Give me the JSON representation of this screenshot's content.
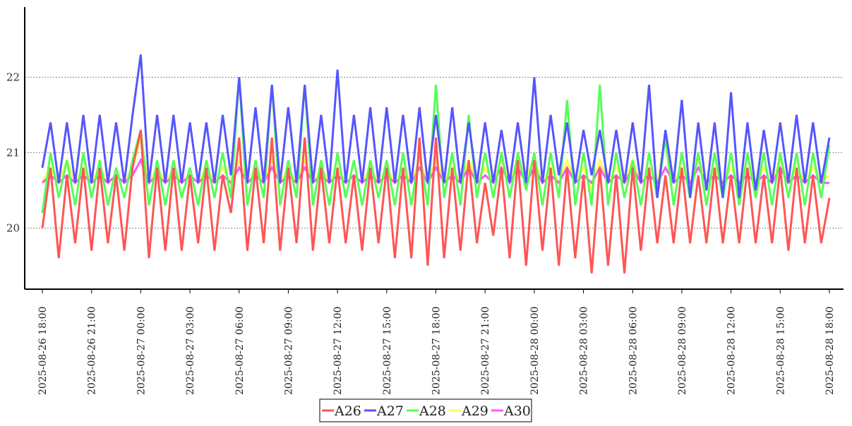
{
  "chart_data": {
    "type": "line",
    "title": "",
    "xlabel": "",
    "ylabel": "",
    "x_start": "2025-08-26 18:00",
    "x_end": "2025-08-28 18:00",
    "ylim": [
      19.19,
      22.93
    ],
    "yticks": [
      20,
      21,
      22
    ],
    "grid": "horizontal dotted",
    "legend_position": "bottom-center",
    "xtick_labels": [
      "2025-08-26 18:00",
      "2025-08-26 21:00",
      "2025-08-27 00:00",
      "2025-08-27 03:00",
      "2025-08-27 06:00",
      "2025-08-27 09:00",
      "2025-08-27 12:00",
      "2025-08-27 15:00",
      "2025-08-27 18:00",
      "2025-08-27 21:00",
      "2025-08-28 00:00",
      "2025-08-28 03:00",
      "2025-08-28 06:00",
      "2025-08-28 09:00",
      "2025-08-28 12:00",
      "2025-08-28 15:00",
      "2025-08-28 18:00"
    ],
    "series": [
      {
        "name": "A29",
        "color": "#ffff55",
        "values": [
          20.6,
          20.8,
          20.6,
          20.9,
          20.6,
          20.8,
          20.6,
          20.8,
          20.6,
          20.7,
          20.6,
          20.8,
          21.2,
          20.6,
          20.8,
          20.6,
          20.8,
          20.6,
          20.7,
          20.6,
          20.8,
          20.6,
          20.8,
          20.6,
          20.9,
          20.6,
          20.8,
          20.6,
          20.9,
          20.6,
          20.8,
          20.6,
          20.9,
          20.6,
          20.8,
          20.6,
          20.8,
          20.6,
          20.7,
          20.6,
          20.8,
          20.6,
          20.8,
          20.6,
          20.8,
          20.6,
          20.9,
          20.6,
          20.9,
          20.6,
          20.8,
          20.6,
          20.9,
          20.6,
          20.8,
          20.6,
          20.9,
          20.6,
          20.9,
          20.7,
          20.9,
          20.6,
          20.8,
          20.6,
          20.9,
          20.6,
          20.8,
          20.5,
          20.9,
          20.6,
          20.8,
          20.6,
          20.9,
          20.6,
          20.8,
          20.6,
          21.2,
          20.6,
          20.8,
          20.6,
          20.9,
          20.6,
          20.8,
          20.6,
          20.8,
          20.6,
          20.8,
          20.6,
          20.8,
          20.6,
          20.9,
          20.6,
          20.8,
          20.6,
          20.8,
          20.6,
          20.7
        ]
      },
      {
        "name": "A30",
        "color": "#ff55ff",
        "values": [
          20.6,
          20.7,
          20.6,
          20.7,
          20.6,
          20.7,
          20.6,
          20.7,
          20.6,
          20.7,
          20.6,
          20.7,
          20.9,
          20.6,
          20.7,
          20.6,
          20.7,
          20.6,
          20.7,
          20.6,
          20.7,
          20.6,
          20.7,
          20.6,
          20.8,
          20.6,
          20.7,
          20.6,
          20.8,
          20.6,
          20.7,
          20.6,
          20.8,
          20.6,
          20.7,
          20.6,
          20.7,
          20.6,
          20.7,
          20.6,
          20.7,
          20.6,
          20.7,
          20.6,
          20.7,
          20.6,
          20.8,
          20.6,
          20.8,
          20.6,
          20.7,
          20.6,
          20.8,
          20.6,
          20.7,
          20.6,
          20.8,
          20.6,
          20.8,
          20.6,
          20.8,
          20.6,
          20.7,
          20.6,
          20.8,
          20.6,
          20.7,
          20.6,
          20.8,
          20.6,
          20.7,
          20.6,
          20.8,
          20.6,
          20.7,
          20.6,
          20.8,
          20.6,
          20.7,
          20.6,
          20.8,
          20.6,
          20.7,
          20.6,
          20.7,
          20.6,
          20.7,
          20.6,
          20.7,
          20.6,
          20.8,
          20.6,
          20.7,
          20.6,
          20.7,
          20.6,
          20.6
        ]
      },
      {
        "name": "A28",
        "color": "#55ff55",
        "values": [
          20.2,
          21.0,
          20.4,
          20.9,
          20.3,
          21.0,
          20.4,
          20.9,
          20.3,
          20.8,
          20.4,
          20.9,
          21.3,
          20.3,
          20.9,
          20.3,
          20.9,
          20.4,
          20.8,
          20.3,
          20.9,
          20.4,
          21.0,
          20.4,
          22.0,
          20.3,
          20.9,
          20.4,
          21.9,
          20.3,
          20.9,
          20.4,
          21.9,
          20.3,
          20.9,
          20.3,
          21.0,
          20.4,
          20.9,
          20.3,
          20.9,
          20.4,
          20.9,
          20.3,
          21.0,
          20.3,
          21.0,
          20.3,
          21.9,
          20.4,
          21.0,
          20.3,
          21.5,
          20.4,
          21.0,
          20.4,
          21.0,
          20.4,
          21.0,
          20.5,
          21.0,
          20.3,
          21.0,
          20.4,
          21.7,
          20.3,
          21.0,
          20.3,
          21.9,
          20.3,
          21.0,
          20.4,
          20.9,
          20.3,
          21.0,
          20.4,
          21.2,
          20.3,
          21.0,
          20.4,
          21.0,
          20.3,
          21.0,
          20.4,
          21.0,
          20.3,
          21.0,
          20.4,
          21.0,
          20.3,
          21.0,
          20.4,
          21.0,
          20.3,
          21.0,
          20.4,
          21.1
        ]
      },
      {
        "name": "A27",
        "color": "#5555ff",
        "values": [
          20.8,
          21.4,
          20.6,
          21.4,
          20.6,
          21.5,
          20.6,
          21.5,
          20.6,
          21.4,
          20.6,
          21.5,
          22.3,
          20.6,
          21.5,
          20.6,
          21.5,
          20.6,
          21.4,
          20.6,
          21.4,
          20.6,
          21.5,
          20.7,
          22.0,
          20.6,
          21.6,
          20.6,
          21.9,
          20.6,
          21.6,
          20.6,
          21.9,
          20.6,
          21.5,
          20.6,
          22.1,
          20.6,
          21.5,
          20.6,
          21.6,
          20.6,
          21.6,
          20.6,
          21.5,
          20.6,
          21.6,
          20.6,
          21.5,
          20.6,
          21.6,
          20.6,
          21.4,
          20.6,
          21.4,
          20.6,
          21.3,
          20.6,
          21.4,
          20.6,
          22.0,
          20.6,
          21.5,
          20.7,
          21.4,
          20.6,
          21.3,
          20.7,
          21.3,
          20.6,
          21.3,
          20.6,
          21.4,
          20.6,
          21.9,
          20.4,
          21.3,
          20.6,
          21.7,
          20.4,
          21.4,
          20.5,
          21.4,
          20.4,
          21.8,
          20.4,
          21.4,
          20.5,
          21.3,
          20.6,
          21.4,
          20.6,
          21.5,
          20.6,
          21.4,
          20.6,
          21.2
        ]
      },
      {
        "name": "A26",
        "color": "#ff5555",
        "values": [
          20.0,
          20.8,
          19.6,
          20.7,
          19.8,
          20.8,
          19.7,
          20.8,
          19.8,
          20.7,
          19.7,
          20.8,
          21.3,
          19.6,
          20.8,
          19.7,
          20.8,
          19.7,
          20.7,
          19.8,
          20.8,
          19.7,
          20.7,
          20.2,
          21.2,
          19.7,
          20.8,
          19.8,
          21.2,
          19.7,
          20.8,
          19.8,
          21.2,
          19.7,
          20.8,
          19.8,
          20.8,
          19.8,
          20.7,
          19.7,
          20.8,
          19.8,
          20.8,
          19.6,
          20.8,
          19.6,
          21.2,
          19.5,
          21.2,
          19.6,
          20.8,
          19.7,
          20.9,
          19.8,
          20.6,
          19.9,
          20.8,
          19.6,
          20.9,
          19.5,
          20.9,
          19.7,
          20.8,
          19.5,
          20.8,
          19.6,
          20.7,
          19.4,
          20.8,
          19.5,
          20.7,
          19.4,
          20.8,
          19.7,
          20.8,
          19.8,
          20.7,
          19.8,
          20.8,
          19.8,
          20.7,
          19.8,
          20.8,
          19.8,
          20.7,
          19.8,
          20.8,
          19.8,
          20.7,
          19.8,
          20.8,
          19.7,
          20.8,
          19.8,
          20.7,
          19.8,
          20.4
        ]
      }
    ],
    "legend": [
      "A26",
      "A27",
      "A28",
      "A29",
      "A30"
    ]
  }
}
